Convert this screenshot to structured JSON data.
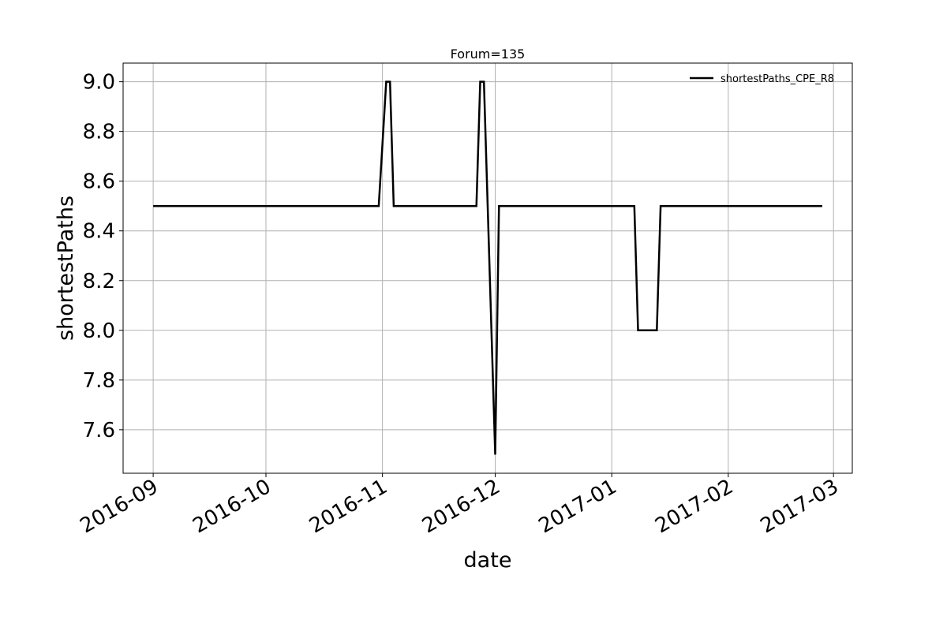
{
  "chart_data": {
    "type": "line",
    "title": "Forum=135",
    "xlabel": "date",
    "ylabel": "shortestPaths",
    "x_tick_labels": [
      "2016-09",
      "2016-10",
      "2016-11",
      "2016-12",
      "2017-01",
      "2017-02",
      "2017-03"
    ],
    "y_tick_labels": [
      "7.6",
      "7.8",
      "8.0",
      "8.2",
      "8.4",
      "8.6",
      "8.8",
      "9.0"
    ],
    "xlim": [
      "2016-08-24",
      "2017-03-06"
    ],
    "ylim": [
      7.425,
      9.075
    ],
    "grid": true,
    "legend_position": "top-right",
    "series": [
      {
        "name": "shortestPaths_CPE_R8",
        "color": "#000000",
        "points": [
          [
            "2016-09-01",
            8.5
          ],
          [
            "2016-10-31",
            8.5
          ],
          [
            "2016-11-02",
            9.0
          ],
          [
            "2016-11-03",
            9.0
          ],
          [
            "2016-11-04",
            8.5
          ],
          [
            "2016-11-26",
            8.5
          ],
          [
            "2016-11-27",
            9.0
          ],
          [
            "2016-11-28",
            9.0
          ],
          [
            "2016-12-01",
            7.5
          ],
          [
            "2016-12-02",
            8.5
          ],
          [
            "2017-01-07",
            8.5
          ],
          [
            "2017-01-08",
            8.0
          ],
          [
            "2017-01-13",
            8.0
          ],
          [
            "2017-01-14",
            8.5
          ],
          [
            "2017-02-26",
            8.5
          ]
        ]
      }
    ]
  }
}
